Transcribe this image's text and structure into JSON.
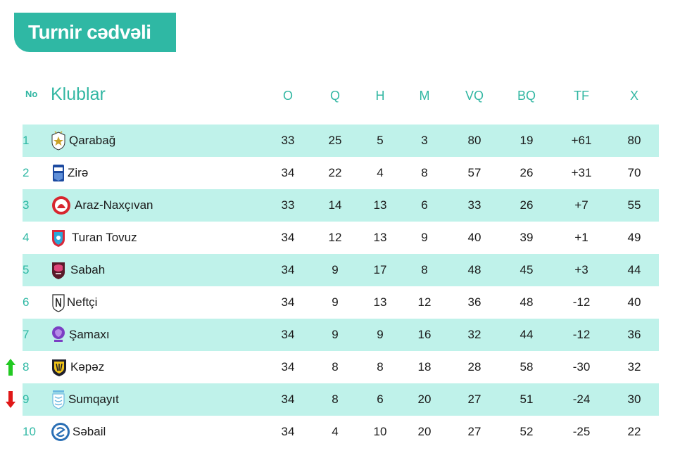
{
  "title": "Turnir cədvəli",
  "headers": {
    "no": "No",
    "club": "Klublar",
    "o": "O",
    "q": "Q",
    "h": "H",
    "m": "M",
    "vq": "VQ",
    "bq": "BQ",
    "tf": "TF",
    "x": "X"
  },
  "colors": {
    "accent": "#2fb8a4",
    "row_alt": "#bff2ea",
    "up": "#22c922",
    "down": "#e01818"
  },
  "rows": [
    {
      "no": "1",
      "club": "Qarabağ",
      "o": "33",
      "q": "25",
      "h": "5",
      "m": "3",
      "vq": "80",
      "bq": "19",
      "tf": "+61",
      "x": "80",
      "logo": "qarabag-logo"
    },
    {
      "no": "2",
      "club": "Zirə",
      "o": "34",
      "q": "22",
      "h": "4",
      "m": "8",
      "vq": "57",
      "bq": "26",
      "tf": "+31",
      "x": "70",
      "logo": "zire-logo"
    },
    {
      "no": "3",
      "club": "Araz-Naxçıvan",
      "o": "33",
      "q": "14",
      "h": "13",
      "m": "6",
      "vq": "33",
      "bq": "26",
      "tf": "+7",
      "x": "55",
      "logo": "araz-logo"
    },
    {
      "no": "4",
      "club": "Turan Tovuz",
      "o": "34",
      "q": "12",
      "h": "13",
      "m": "9",
      "vq": "40",
      "bq": "39",
      "tf": "+1",
      "x": "49",
      "logo": "turan-logo"
    },
    {
      "no": "5",
      "club": "Sabah",
      "o": "34",
      "q": "9",
      "h": "17",
      "m": "8",
      "vq": "48",
      "bq": "45",
      "tf": "+3",
      "x": "44",
      "logo": "sabah-logo"
    },
    {
      "no": "6",
      "club": "Neftçi",
      "o": "34",
      "q": "9",
      "h": "13",
      "m": "12",
      "vq": "36",
      "bq": "48",
      "tf": "-12",
      "x": "40",
      "logo": "neftci-logo"
    },
    {
      "no": "7",
      "club": "Şamaxı",
      "o": "34",
      "q": "9",
      "h": "9",
      "m": "16",
      "vq": "32",
      "bq": "44",
      "tf": "-12",
      "x": "36",
      "logo": "samaxi-logo"
    },
    {
      "no": "8",
      "club": "Kəpəz",
      "o": "34",
      "q": "8",
      "h": "8",
      "m": "18",
      "vq": "28",
      "bq": "58",
      "tf": "-30",
      "x": "32",
      "logo": "kepez-logo",
      "trend": "up-arrow-icon"
    },
    {
      "no": "9",
      "club": "Sumqayıt",
      "o": "34",
      "q": "8",
      "h": "6",
      "m": "20",
      "vq": "27",
      "bq": "51",
      "tf": "-24",
      "x": "30",
      "logo": "sumqayit-logo",
      "trend": "down-arrow-icon"
    },
    {
      "no": "10",
      "club": "Səbail",
      "o": "34",
      "q": "4",
      "h": "10",
      "m": "20",
      "vq": "27",
      "bq": "52",
      "tf": "-25",
      "x": "22",
      "logo": "sebail-logo"
    }
  ]
}
